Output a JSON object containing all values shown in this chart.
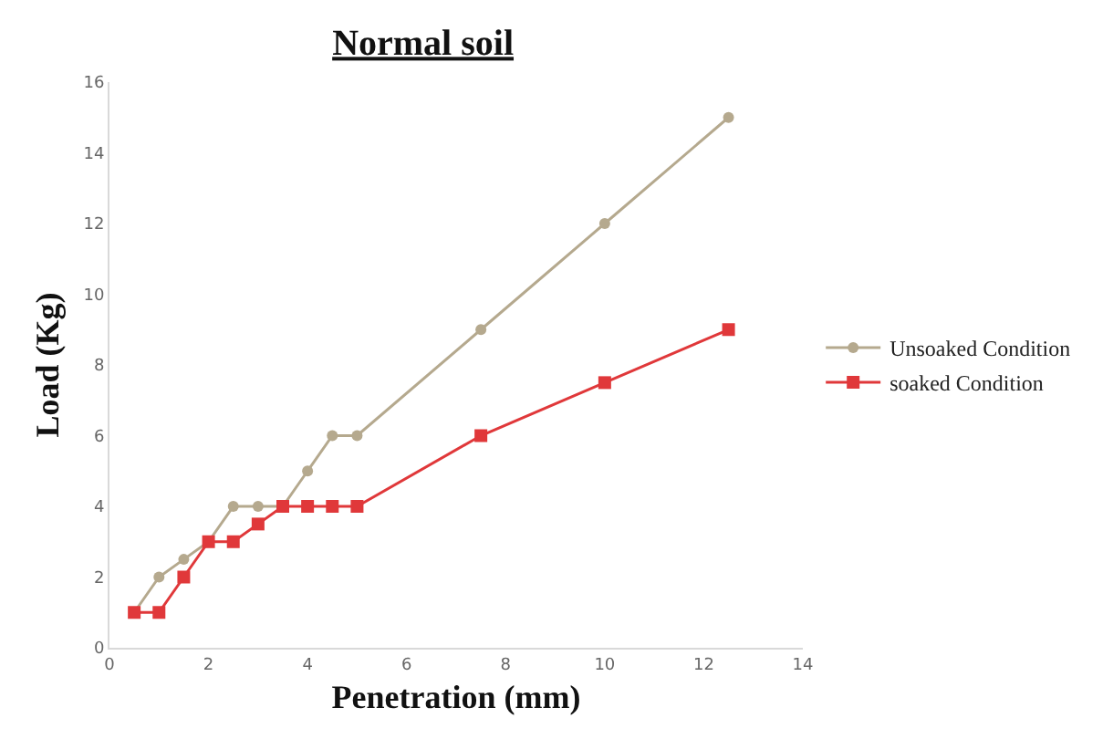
{
  "chart_data": {
    "type": "line",
    "title": "Normal soil",
    "xlabel": "Penetration (mm)",
    "ylabel": "Load (Kg)",
    "x": [
      0.5,
      1,
      1.5,
      2,
      2.5,
      3,
      3.5,
      4,
      4.5,
      5,
      7.5,
      10,
      12.5
    ],
    "series": [
      {
        "name": "Unsoaked Condition",
        "color": "#b5a98e",
        "marker": "circle",
        "values": [
          1,
          2,
          2.5,
          3,
          4,
          4,
          4,
          5,
          6,
          6,
          9,
          12,
          15
        ]
      },
      {
        "name": "soaked Condition",
        "color": "#e0383a",
        "marker": "square",
        "values": [
          1,
          1,
          2,
          3,
          3,
          3.5,
          4,
          4,
          4,
          4,
          6,
          7.5,
          9
        ]
      }
    ],
    "xlim": [
      0,
      14
    ],
    "xticks": [
      0,
      2,
      4,
      6,
      8,
      10,
      12,
      14
    ],
    "ylim": [
      0,
      16
    ],
    "yticks": [
      0,
      2,
      4,
      6,
      8,
      10,
      12,
      14,
      16
    ],
    "legend": "right"
  }
}
